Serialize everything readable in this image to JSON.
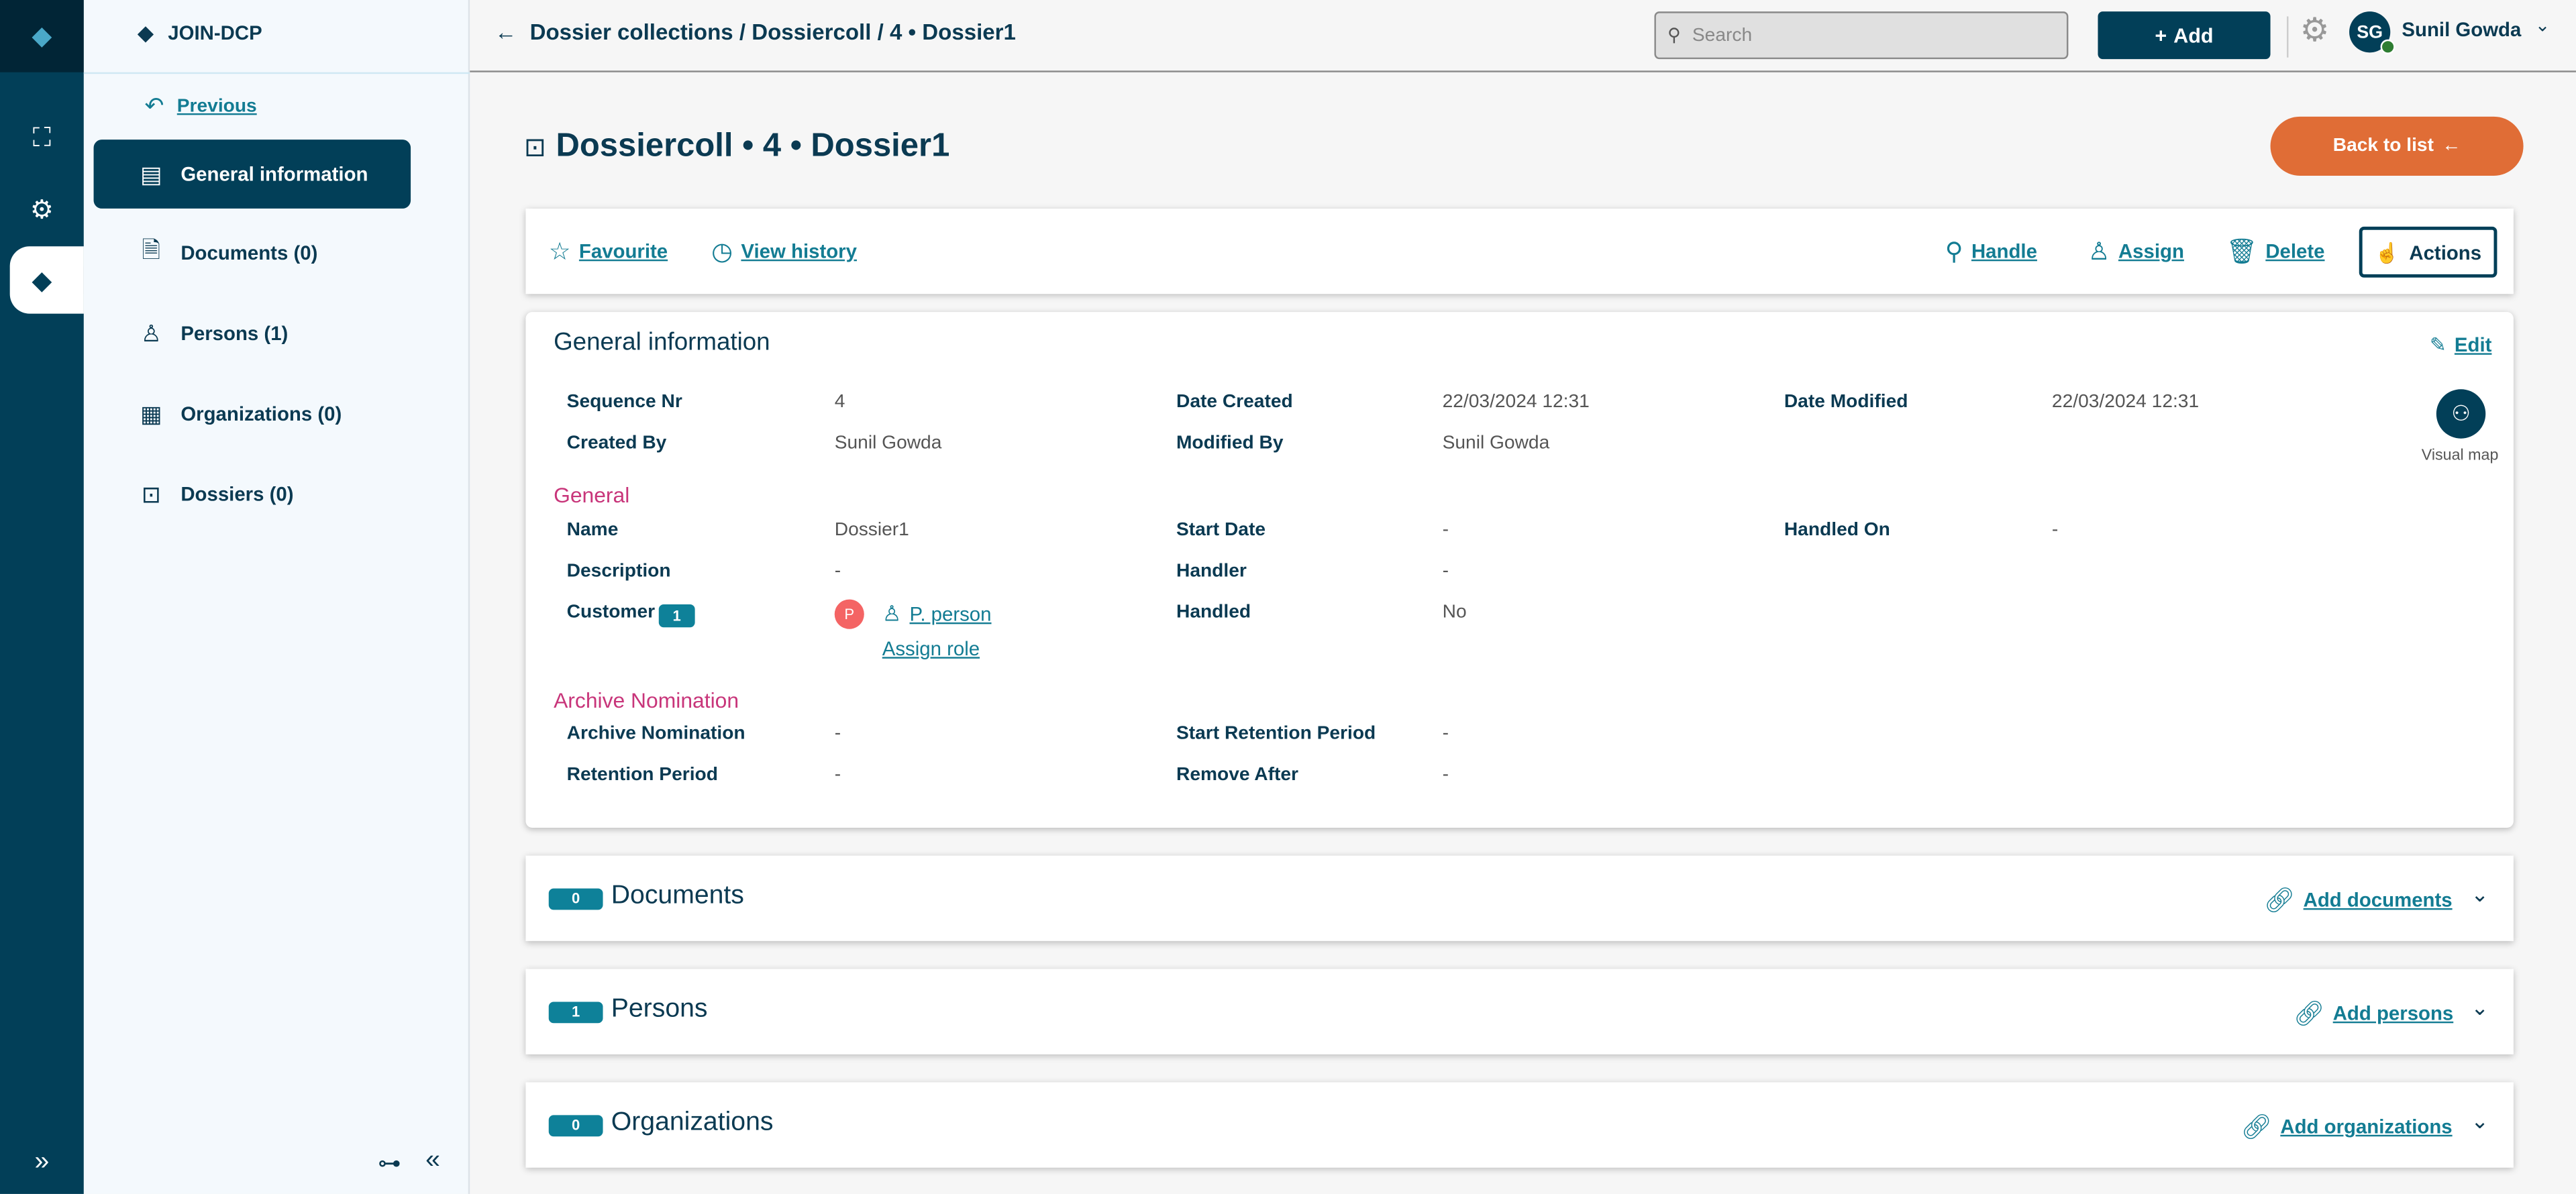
{
  "app": {
    "name": "JOIN-DCP"
  },
  "rail": {
    "icons": [
      "logo-icon",
      "team-icon",
      "settings-icon",
      "dossier-app-icon",
      "expand-icon"
    ]
  },
  "panel": {
    "previous": "Previous",
    "items": [
      {
        "label": "General information",
        "icon": "form-icon",
        "active": true
      },
      {
        "label": "Documents (0)",
        "icon": "documents-icon"
      },
      {
        "label": "Persons (1)",
        "icon": "person-icon"
      },
      {
        "label": "Organizations (0)",
        "icon": "building-icon"
      },
      {
        "label": "Dossiers (0)",
        "icon": "briefcase-icon"
      }
    ]
  },
  "topbar": {
    "breadcrumb": "Dossier collections / Dossiercoll / 4 • Dossier1",
    "search_placeholder": "Search",
    "add_label": "Add",
    "user": {
      "initials": "SG",
      "name": "Sunil Gowda",
      "status_color": "#2e7d32"
    }
  },
  "page": {
    "title": "Dossiercoll • 4 • Dossier1",
    "back_label": "Back to list"
  },
  "actions": {
    "favourite": "Favourite",
    "view_history": "View history",
    "handle": "Handle",
    "assign": "Assign",
    "delete": "Delete",
    "actions": "Actions"
  },
  "general": {
    "title": "General information",
    "edit": "Edit",
    "visual_map": "Visual map",
    "meta": [
      {
        "label": "Sequence Nr",
        "value": "4"
      },
      {
        "label": "Date Created",
        "value": "22/03/2024 12:31"
      },
      {
        "label": "Date Modified",
        "value": "22/03/2024 12:31"
      },
      {
        "label": "Created By",
        "value": "Sunil Gowda"
      },
      {
        "label": "Modified By",
        "value": "Sunil Gowda"
      }
    ],
    "section_general": "General",
    "fields": [
      {
        "label": "Name",
        "value": "Dossier1"
      },
      {
        "label": "Start Date",
        "value": "-"
      },
      {
        "label": "Handled On",
        "value": "-"
      },
      {
        "label": "Description",
        "value": "-"
      },
      {
        "label": "Handler",
        "value": "-"
      },
      {
        "label": "Handled",
        "value": "No"
      }
    ],
    "customer": {
      "label": "Customer",
      "count": "1",
      "avatar": "P",
      "person": "P. person",
      "assign_role": "Assign role"
    },
    "section_archive": "Archive Nomination",
    "archive": [
      {
        "label": "Archive Nomination",
        "value": "-"
      },
      {
        "label": "Start Retention Period",
        "value": "-"
      },
      {
        "label": "Retention Period",
        "value": "-"
      },
      {
        "label": "Remove After",
        "value": "-"
      }
    ]
  },
  "collections": [
    {
      "count": "0",
      "title": "Documents",
      "add": "Add documents"
    },
    {
      "count": "1",
      "title": "Persons",
      "add": "Add persons"
    },
    {
      "count": "0",
      "title": "Organizations",
      "add": "Add organizations"
    }
  ],
  "colors": {
    "navy": "#023f58",
    "teal": "#137c93",
    "orange": "#e06d36",
    "pink": "#c8357a",
    "avatar_red": "#f46464"
  }
}
